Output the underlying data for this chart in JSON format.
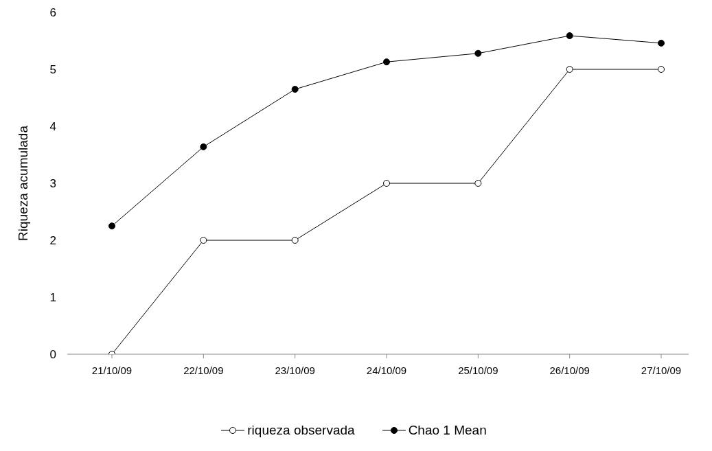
{
  "chart_data": {
    "type": "line",
    "ylabel": "Riqueza acumulada",
    "categories": [
      "21/10/09",
      "22/10/09",
      "23/10/09",
      "24/10/09",
      "25/10/09",
      "26/10/09",
      "27/10/09"
    ],
    "series": [
      {
        "name": "riqueza observada",
        "color": "#000000",
        "values": [
          0,
          2,
          2,
          3,
          3,
          5,
          5
        ]
      },
      {
        "name": "Chao 1 Mean",
        "color": "#000000",
        "values": [
          2.25,
          3.64,
          4.65,
          5.13,
          5.28,
          5.59,
          5.46
        ]
      }
    ],
    "ylim": [
      0,
      6
    ],
    "yticks": [
      0,
      1,
      2,
      3,
      4,
      5,
      6
    ],
    "grid": false,
    "legend": "bottom",
    "marker": "circle",
    "line_style": "solid"
  }
}
